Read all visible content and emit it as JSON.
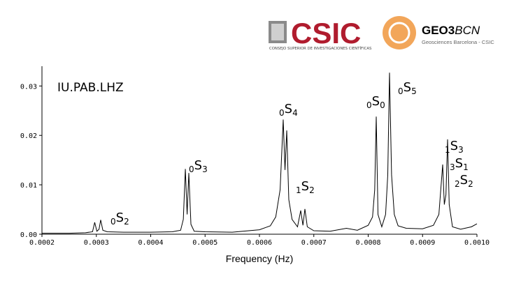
{
  "logos": {
    "csic": "CSIC",
    "csic_caption": "CONSEJO SUPERIOR DE INVESTIGACIONES CIENTÍFICAS",
    "geo_bold": "GEO3",
    "geo_italic": "BCN",
    "geo_caption": "Geosciences Barcelona - CSIC"
  },
  "chart_data": {
    "type": "line",
    "station": "IU.PAB.LHZ",
    "x_label": "Frequency (Hz)",
    "color": "#000000",
    "xlim": [
      0.0002,
      0.001
    ],
    "xticks": [
      0.0002,
      0.0003,
      0.0004,
      0.0005,
      0.0006,
      0.0007,
      0.0008,
      0.0009,
      {
        "value": 0.001,
        "label": "0.0010"
      }
    ],
    "ylim": [
      0,
      0.034
    ],
    "yticks": [
      {
        "value": 0,
        "label": "0.00"
      },
      0.01,
      0.02,
      0.03
    ],
    "x": [
      0.0002,
      0.00025,
      0.00028,
      0.000293,
      0.000297,
      0.000301,
      0.000305,
      0.000308,
      0.000312,
      0.00032,
      0.00035,
      0.0004,
      0.00044,
      0.000455,
      0.00046,
      0.0004637,
      0.000467,
      0.0004701,
      0.000474,
      0.00048,
      0.0005,
      0.00055,
      0.0006,
      0.00062,
      0.00063,
      0.000638,
      0.0006437,
      0.000647,
      0.0006502,
      0.000654,
      0.00066,
      0.00067,
      0.0006759,
      0.00068,
      0.0006836,
      0.000688,
      0.0007,
      0.00073,
      0.00076,
      0.00078,
      0.0008,
      0.000808,
      0.000812,
      0.0008148,
      0.000818,
      0.000825,
      0.000832,
      0.000836,
      0.0008392,
      0.000843,
      0.000848,
      0.000855,
      0.00087,
      0.0009,
      0.00092,
      0.00093,
      0.000937,
      0.00094,
      0.000943,
      0.000946,
      0.000949,
      0.000955,
      0.00097,
      0.00099,
      0.001
    ],
    "values": [
      0.0002,
      0.0002,
      0.0003,
      0.0005,
      0.0024,
      0.0006,
      0.001,
      0.0029,
      0.0008,
      0.0005,
      0.0004,
      0.0004,
      0.0005,
      0.0008,
      0.003,
      0.0132,
      0.004,
      0.0124,
      0.002,
      0.0006,
      0.0005,
      0.0004,
      0.0009,
      0.0017,
      0.0035,
      0.009,
      0.0232,
      0.013,
      0.021,
      0.007,
      0.003,
      0.0015,
      0.0048,
      0.0018,
      0.0051,
      0.0015,
      0.0007,
      0.0006,
      0.0012,
      0.0008,
      0.0018,
      0.0035,
      0.009,
      0.0238,
      0.004,
      0.0015,
      0.004,
      0.012,
      0.0327,
      0.012,
      0.004,
      0.0017,
      0.0012,
      0.0011,
      0.0018,
      0.004,
      0.0141,
      0.006,
      0.008,
      0.0192,
      0.006,
      0.0015,
      0.001,
      0.0015,
      0.0021
    ],
    "annotations": [
      {
        "pre": "0",
        "letter": "S",
        "sub": "2"
      },
      {
        "pre": "0",
        "letter": "S",
        "sub": "3"
      },
      {
        "pre": "0",
        "letter": "S",
        "sub": "4"
      },
      {
        "pre": "1",
        "letter": "S",
        "sub": "2"
      },
      {
        "pre": "0",
        "letter": "S",
        "sub": "0"
      },
      {
        "pre": "0",
        "letter": "S",
        "sub": "5"
      },
      {
        "pre": "1",
        "letter": "S",
        "sub": "3"
      },
      {
        "pre": "3",
        "letter": "S",
        "sub": "1"
      },
      {
        "pre": "2",
        "letter": "S",
        "sub": "2"
      }
    ]
  }
}
